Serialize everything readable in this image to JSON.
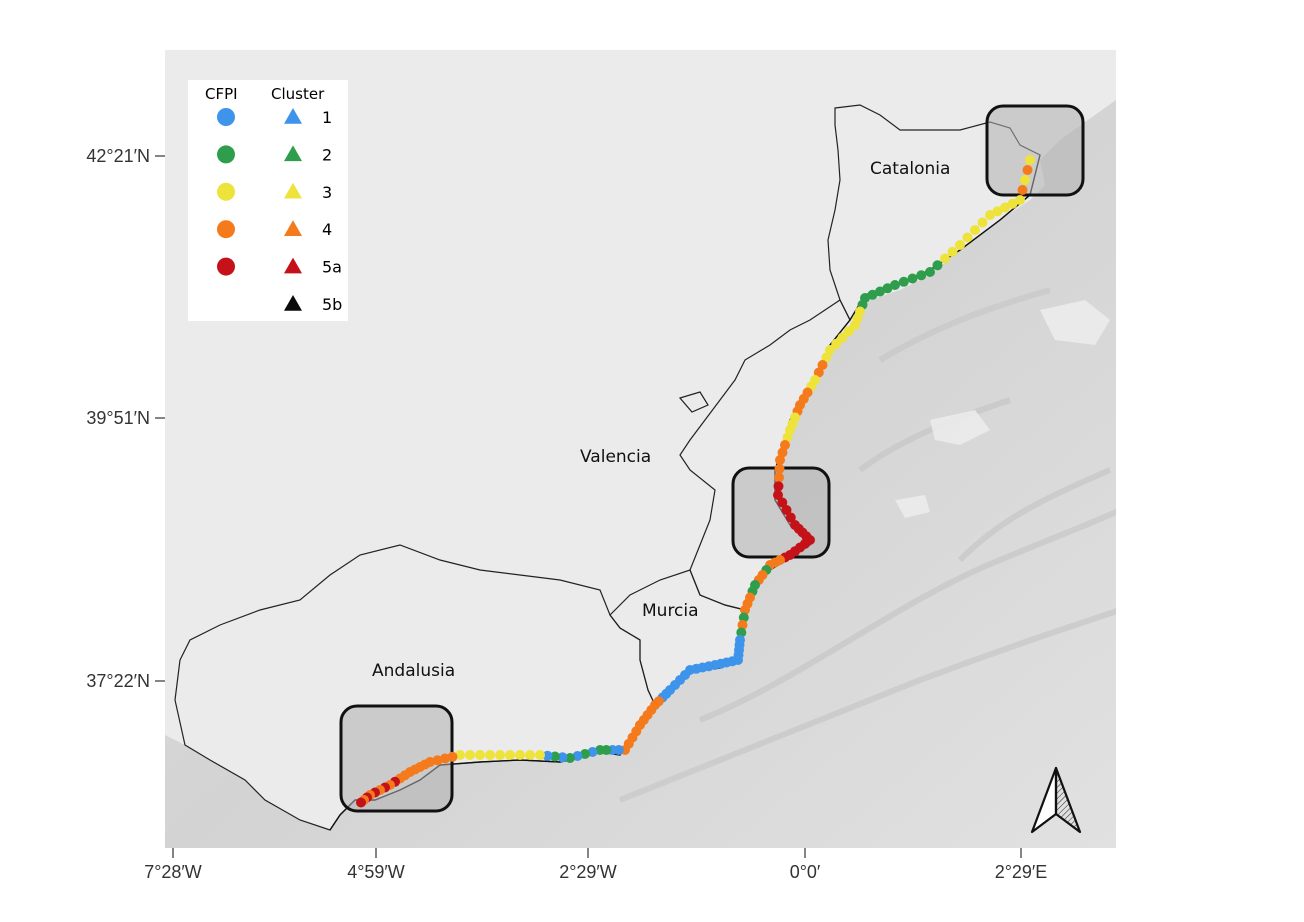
{
  "axes": {
    "y_labels": [
      "42°21′N",
      "39°51′N",
      "37°22′N"
    ],
    "x_labels": [
      "7°28′W",
      "4°59′W",
      "2°29′W",
      "0°0′",
      "2°29′E"
    ]
  },
  "regions": [
    "Catalonia",
    "Valencia",
    "Murcia",
    "Andalusia"
  ],
  "legend": {
    "cfpi_title": "CFPI",
    "cluster_title": "Cluster",
    "cluster_labels": [
      "1",
      "2",
      "3",
      "4",
      "5a",
      "5b"
    ],
    "colors": {
      "1": "#3d94ea",
      "2": "#2e9e4c",
      "3": "#ede33a",
      "4": "#f47a1c",
      "5a": "#c41218",
      "5b": "#0b0b0b"
    },
    "cfpi_classes": [
      "1",
      "2",
      "3",
      "4",
      "5a"
    ]
  },
  "colors": {
    "land": "#ebebeb",
    "sea": "#d7d7d7",
    "highlight_box": "#b0b0b0"
  },
  "icons": {
    "north_arrow": "north-arrow-icon"
  }
}
